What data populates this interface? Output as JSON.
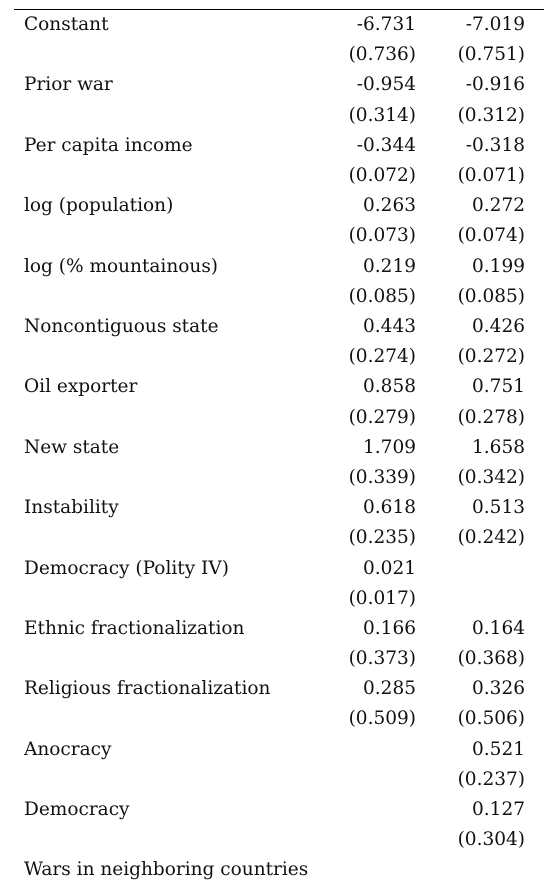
{
  "table": {
    "rows": [
      {
        "label": "Constant",
        "c1": {
          "coef": "-6.731",
          "se": "(0.736)"
        },
        "c2": {
          "coef": "-7.019",
          "se": "(0.751)"
        }
      },
      {
        "label": "Prior war",
        "c1": {
          "coef": "-0.954",
          "se": "(0.314)"
        },
        "c2": {
          "coef": "-0.916",
          "se": "(0.312)"
        }
      },
      {
        "label": "Per capita income",
        "c1": {
          "coef": "-0.344",
          "se": "(0.072)"
        },
        "c2": {
          "coef": "-0.318",
          "se": "(0.071)"
        }
      },
      {
        "label": "log (population)",
        "c1": {
          "coef": "0.263",
          "se": "(0.073)"
        },
        "c2": {
          "coef": "0.272",
          "se": "(0.074)"
        }
      },
      {
        "label": "log (% mountainous)",
        "c1": {
          "coef": "0.219",
          "se": "(0.085)"
        },
        "c2": {
          "coef": "0.199",
          "se": "(0.085)"
        }
      },
      {
        "label": "Noncontiguous state",
        "c1": {
          "coef": "0.443",
          "se": "(0.274)"
        },
        "c2": {
          "coef": "0.426",
          "se": "(0.272)"
        }
      },
      {
        "label": "Oil exporter",
        "c1": {
          "coef": "0.858",
          "se": "(0.279)"
        },
        "c2": {
          "coef": "0.751",
          "se": "(0.278)"
        }
      },
      {
        "label": "New state",
        "c1": {
          "coef": "1.709",
          "se": "(0.339)"
        },
        "c2": {
          "coef": "1.658",
          "se": "(0.342)"
        }
      },
      {
        "label": "Instability",
        "c1": {
          "coef": "0.618",
          "se": "(0.235)"
        },
        "c2": {
          "coef": "0.513",
          "se": "(0.242)"
        }
      },
      {
        "label": "Democracy (Polity IV)",
        "c1": {
          "coef": "0.021",
          "se": "(0.017)"
        },
        "c2": {
          "coef": "",
          "se": ""
        }
      },
      {
        "label": "Ethnic fractionalization",
        "c1": {
          "coef": "0.166",
          "se": "(0.373)"
        },
        "c2": {
          "coef": "0.164",
          "se": "(0.368)"
        }
      },
      {
        "label": "Religious fractionalization",
        "c1": {
          "coef": "0.285",
          "se": "(0.509)"
        },
        "c2": {
          "coef": "0.326",
          "se": "(0.506)"
        }
      },
      {
        "label": "Anocracy",
        "c1": {
          "coef": "",
          "se": ""
        },
        "c2": {
          "coef": "0.521",
          "se": "(0.237)"
        }
      },
      {
        "label": "Democracy",
        "c1": {
          "coef": "",
          "se": ""
        },
        "c2": {
          "coef": "0.127",
          "se": "(0.304)"
        }
      },
      {
        "label": "Wars in neighboring countries",
        "c1": {
          "coef": "",
          "se": ""
        },
        "c2": {
          "coef": "",
          "se": ""
        }
      }
    ]
  }
}
